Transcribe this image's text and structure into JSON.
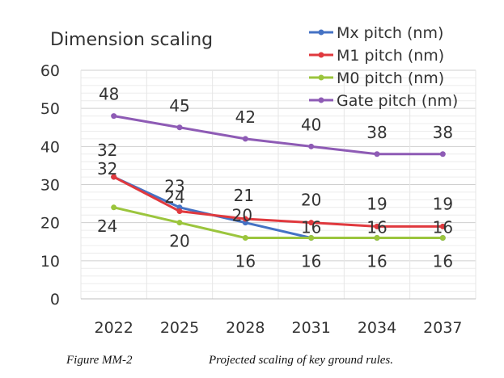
{
  "chart_data": {
    "type": "line",
    "title": "Dimension scaling",
    "xlabel": "",
    "ylabel": "",
    "categories": [
      "2022",
      "2025",
      "2028",
      "2031",
      "2034",
      "2037"
    ],
    "ylim": [
      0,
      60
    ],
    "yticks": [
      0,
      10,
      20,
      30,
      40,
      50,
      60
    ],
    "grid": true,
    "legend_position": "top-right",
    "series": [
      {
        "name": "Mx pitch (nm)",
        "color": "#4472C4",
        "values": [
          32,
          24,
          20,
          16,
          16,
          16
        ],
        "labels": [
          "32",
          "24",
          "20",
          "16",
          "16",
          "16"
        ],
        "label_side": "above"
      },
      {
        "name": "M1 pitch (nm)",
        "color": "#E0393E",
        "values": [
          32,
          23,
          21,
          20,
          19,
          19
        ],
        "labels": [
          "32",
          "23",
          "21",
          "20",
          "19",
          "19"
        ],
        "label_side": "above"
      },
      {
        "name": "M0 pitch (nm)",
        "color": "#9BC53D",
        "values": [
          24,
          20,
          16,
          16,
          16,
          16
        ],
        "labels": [
          "24",
          "20",
          "16",
          "16",
          "16",
          "16"
        ],
        "label_side": "below"
      },
      {
        "name": "Gate pitch (nm)",
        "color": "#8E5BB5",
        "values": [
          48,
          45,
          42,
          40,
          38,
          38
        ],
        "labels": [
          "48",
          "45",
          "42",
          "40",
          "38",
          "38"
        ],
        "label_side": "above"
      }
    ]
  },
  "caption": {
    "figure": "Figure MM-2",
    "text": "Projected scaling of key ground rules."
  }
}
